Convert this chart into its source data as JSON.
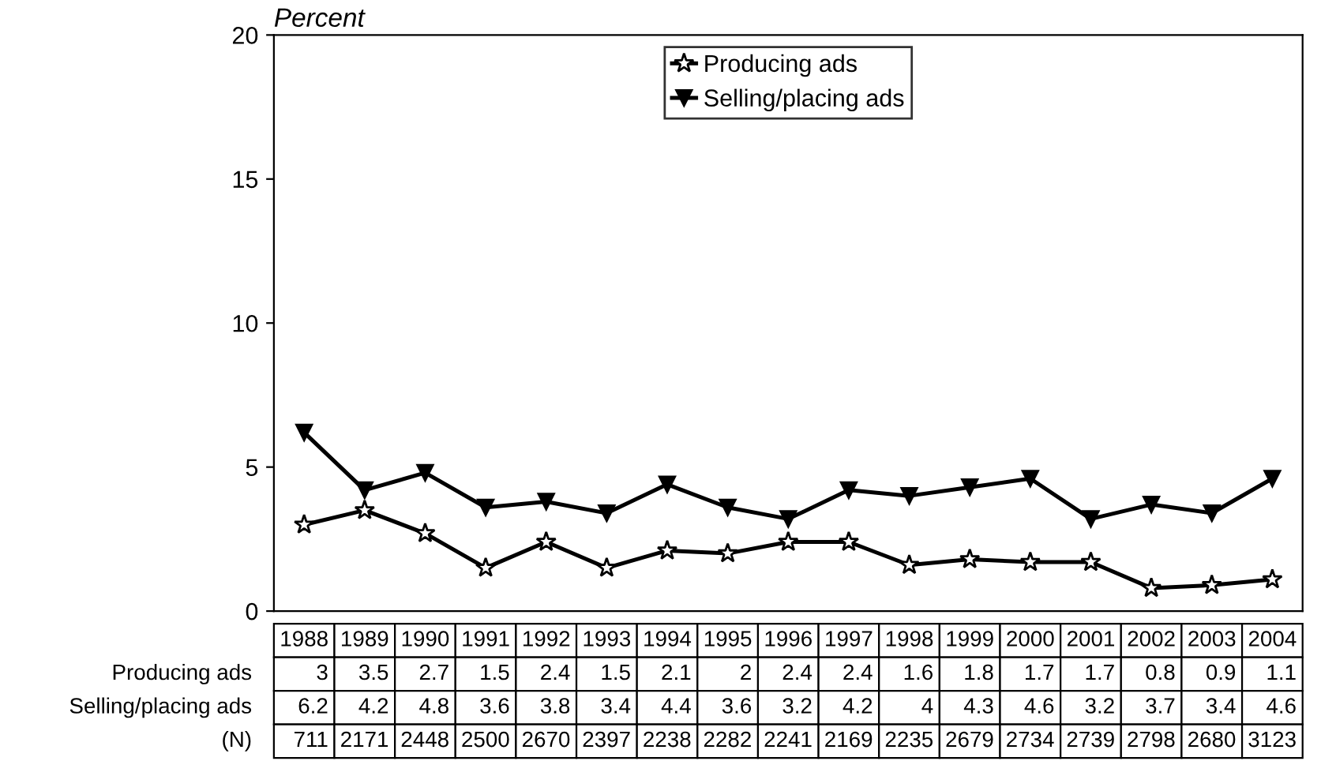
{
  "chart_data": {
    "type": "line",
    "ylabel": "Percent",
    "categories": [
      "1988",
      "1989",
      "1990",
      "1991",
      "1992",
      "1993",
      "1994",
      "1995",
      "1996",
      "1997",
      "1998",
      "1999",
      "2000",
      "2001",
      "2002",
      "2003",
      "2004"
    ],
    "series": [
      {
        "name": "Producing ads",
        "color": "#000000",
        "marker": "star",
        "values": [
          3,
          3.5,
          2.7,
          1.5,
          2.4,
          1.5,
          2.1,
          2,
          2.4,
          2.4,
          1.6,
          1.8,
          1.7,
          1.7,
          0.8,
          0.9,
          1.1
        ]
      },
      {
        "name": "Selling/placing ads",
        "color": "#000000",
        "marker": "triangle",
        "values": [
          6.2,
          4.2,
          4.8,
          3.6,
          3.8,
          3.4,
          4.4,
          3.6,
          3.2,
          4.2,
          4,
          4.3,
          4.6,
          3.2,
          3.7,
          3.4,
          4.6
        ]
      }
    ],
    "annotations": [
      "(N)",
      "711",
      "2171",
      "2448",
      "2500",
      "2670",
      "2397",
      "2238",
      "2282",
      "2241",
      "2169",
      "2235",
      "2679",
      "2734",
      "2739",
      "2798",
      "2680",
      "3123"
    ],
    "ylim": [
      0,
      20
    ],
    "yticks": [
      0,
      5,
      10,
      15,
      20
    ],
    "data_labels": true,
    "grid": false,
    "legend": "top",
    "tick_labels": "y",
    "line_style": "solid"
  }
}
